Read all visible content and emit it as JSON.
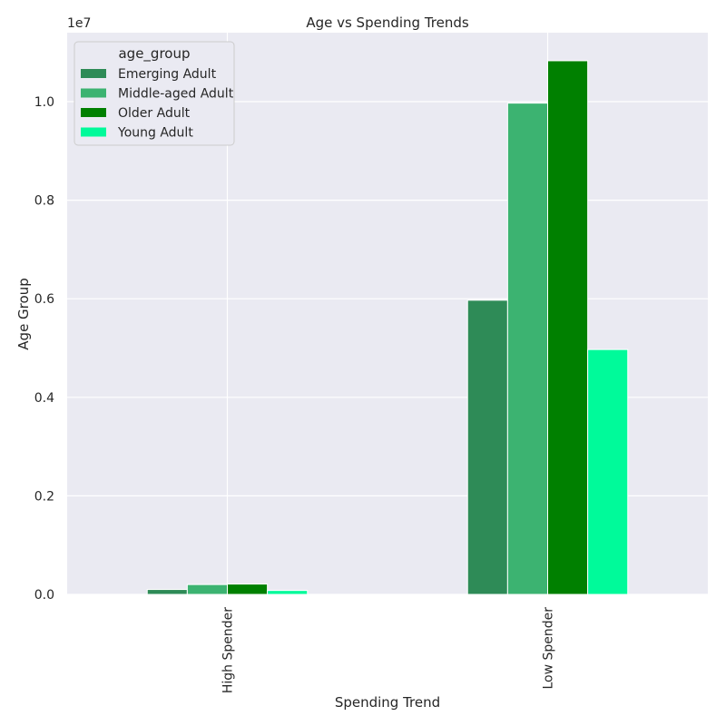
{
  "chart_data": {
    "type": "bar",
    "title": "Age vs Spending Trends",
    "xlabel": "Spending Trend",
    "ylabel": "Age Group",
    "y_multiplier_label": "1e7",
    "categories": [
      "High Spender",
      "Low Spender"
    ],
    "ylim": [
      0,
      11400000
    ],
    "yticks": [
      0,
      2000000,
      4000000,
      6000000,
      8000000,
      10000000
    ],
    "ytick_labels": [
      "0.0",
      "0.2",
      "0.4",
      "0.6",
      "0.8",
      "1.0"
    ],
    "grid": true,
    "legend_title": "age_group",
    "legend_position": "top-left",
    "series": [
      {
        "name": "Emerging Adult",
        "color": "#2e8b57",
        "values": [
          100000,
          5970000
        ]
      },
      {
        "name": "Middle-aged Adult",
        "color": "#3cb371",
        "values": [
          200000,
          9970000
        ]
      },
      {
        "name": "Older Adult",
        "color": "#008000",
        "values": [
          210000,
          10830000
        ]
      },
      {
        "name": "Young Adult",
        "color": "#00fa9a",
        "values": [
          80000,
          4970000
        ]
      }
    ]
  }
}
